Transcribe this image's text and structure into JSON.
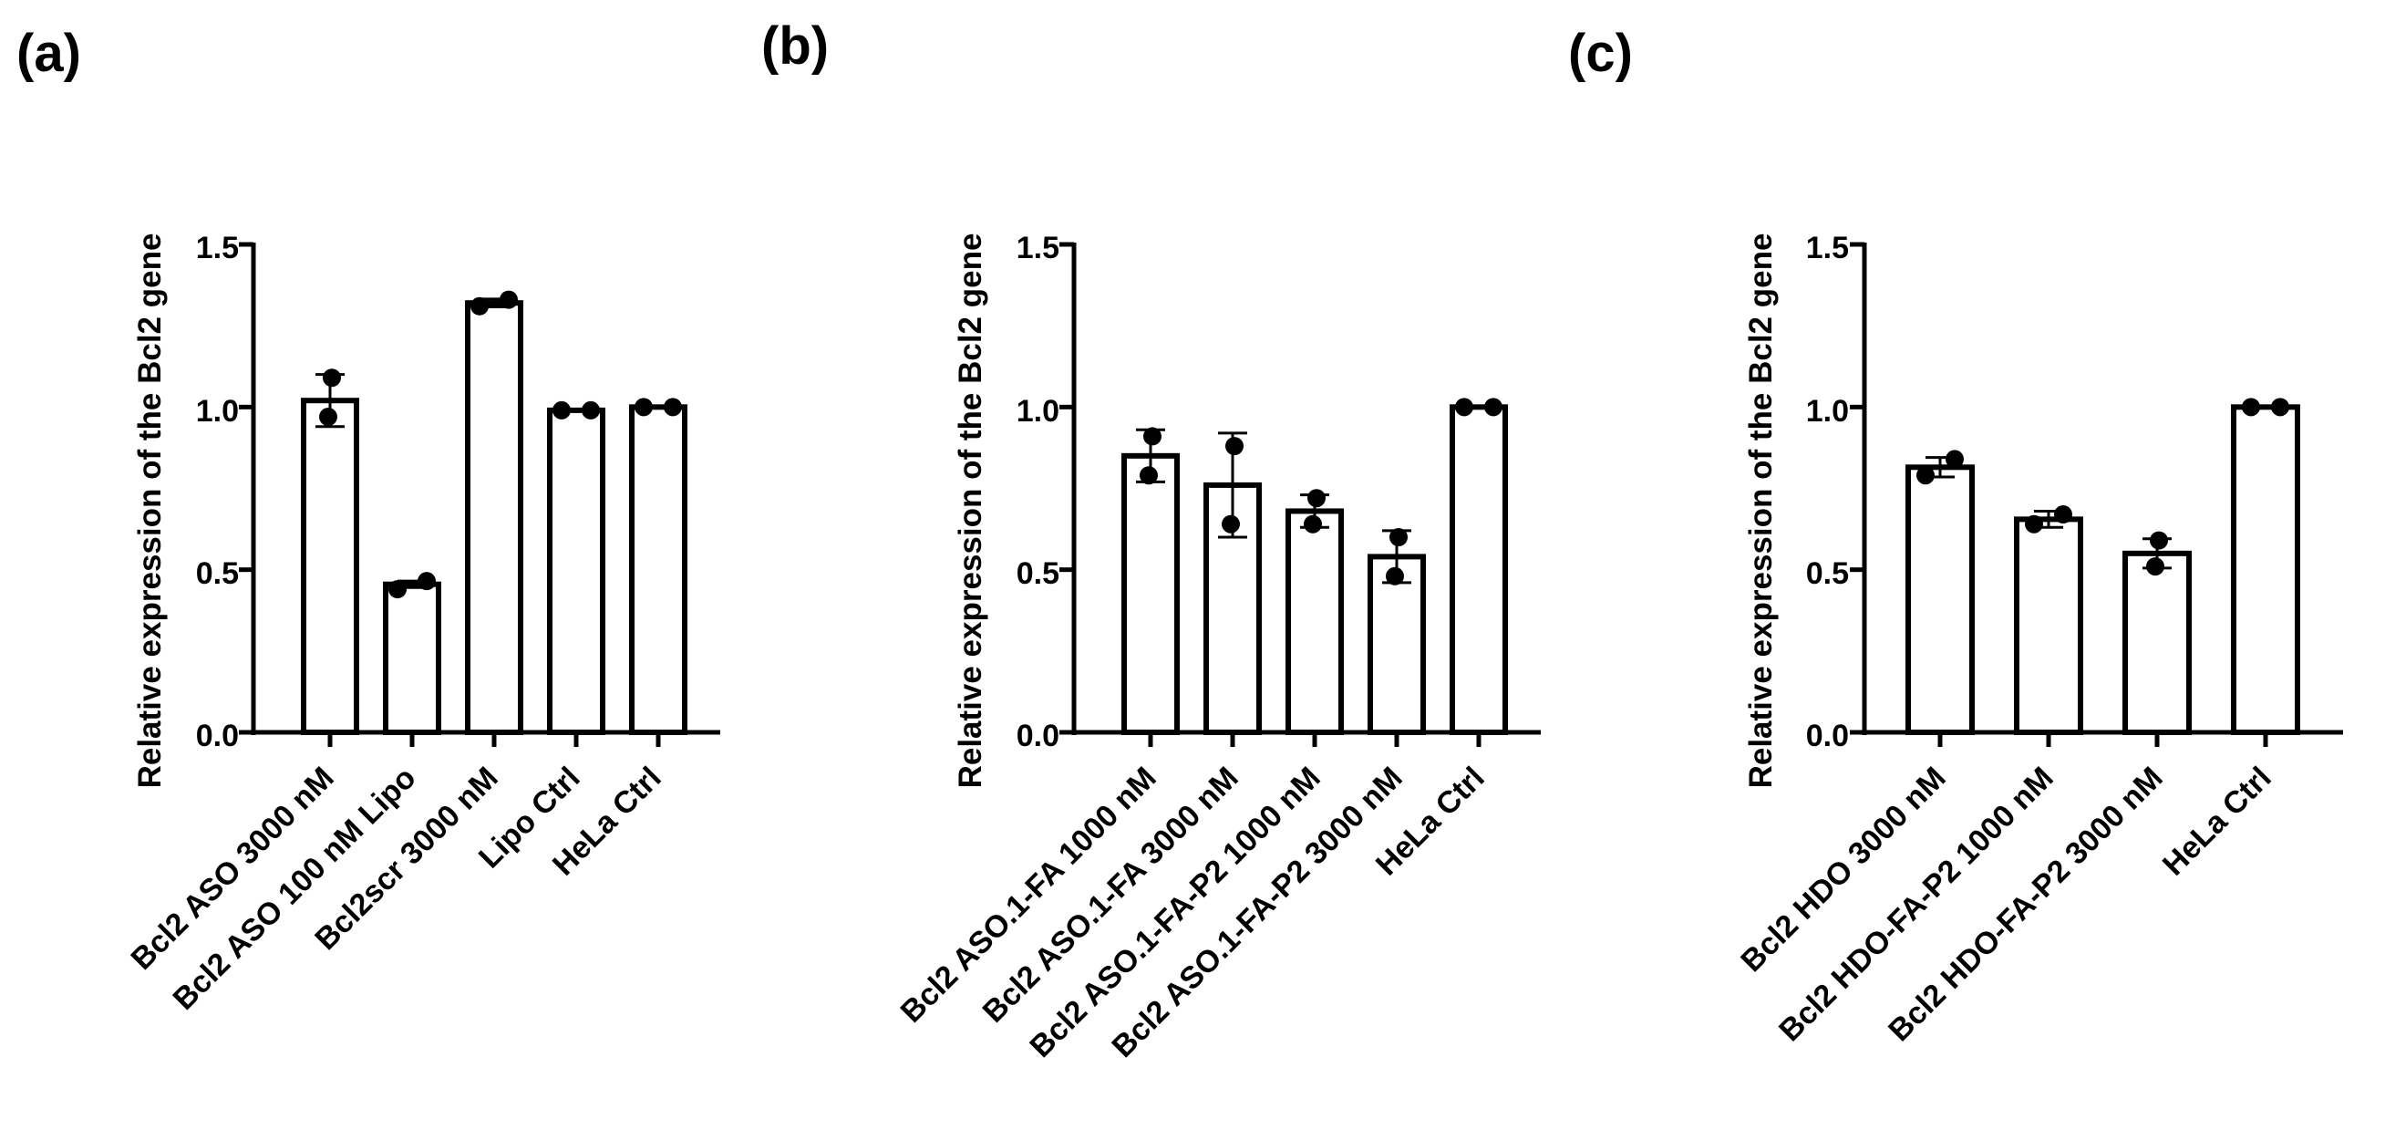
{
  "chart_data": [
    {
      "type": "bar",
      "panel_label": "(a)",
      "ylabel": "Relative expression of the Bcl2 gene",
      "xlabel": "",
      "ylim": [
        0,
        1.5
      ],
      "yticks": [
        0.0,
        0.5,
        1.0,
        1.5
      ],
      "ytick_labels": [
        "0.0",
        "0.5",
        "1.0",
        "1.5"
      ],
      "categories": [
        "Bcl2 ASO 3000 nM",
        "Bcl2 ASO 100 nM Lipo",
        "Bcl2scr 3000 nM",
        "Lipo Ctrl",
        "HeLa Ctrl"
      ],
      "values": [
        1.02,
        0.455,
        1.32,
        0.99,
        1.0
      ],
      "errors": [
        0.08,
        0.01,
        0.012,
        0.0,
        0.0
      ],
      "points": [
        [
          1.09,
          0.97
        ],
        [
          0.44,
          0.465
        ],
        [
          1.31,
          1.33
        ],
        [
          0.99,
          0.99
        ],
        [
          1.0,
          1.0
        ]
      ]
    },
    {
      "type": "bar",
      "panel_label": "(b)",
      "ylabel": "Relative expression of the Bcl2 gene",
      "xlabel": "",
      "ylim": [
        0,
        1.5
      ],
      "yticks": [
        0.0,
        0.5,
        1.0,
        1.5
      ],
      "ytick_labels": [
        "0.0",
        "0.5",
        "1.0",
        "1.5"
      ],
      "categories": [
        "Bcl2 ASO.1-FA 1000 nM",
        "Bcl2 ASO.1-FA 3000 nM",
        "Bcl2 ASO.1-FA-P2 1000 nM",
        "Bcl2 ASO.1-FA-P2 3000 nM",
        "HeLa Ctrl"
      ],
      "values": [
        0.85,
        0.76,
        0.68,
        0.54,
        1.0
      ],
      "errors": [
        0.08,
        0.16,
        0.05,
        0.08,
        0.0
      ],
      "points": [
        [
          0.91,
          0.79
        ],
        [
          0.88,
          0.64
        ],
        [
          0.72,
          0.64
        ],
        [
          0.6,
          0.48
        ],
        [
          1.0,
          1.0
        ]
      ]
    },
    {
      "type": "bar",
      "panel_label": "(c)",
      "ylabel": "Relative expression of the Bcl2 gene",
      "xlabel": "",
      "ylim": [
        0,
        1.5
      ],
      "yticks": [
        0.0,
        0.5,
        1.0,
        1.5
      ],
      "ytick_labels": [
        "0.0",
        "0.5",
        "1.0",
        "1.5"
      ],
      "categories": [
        "Bcl2 HDO 3000 nM",
        "Bcl2 HDO-FA-P2 1000 nM",
        "Bcl2 HDO-FA-P2 3000 nM",
        "HeLa Ctrl"
      ],
      "values": [
        0.815,
        0.655,
        0.55,
        1.0
      ],
      "errors": [
        0.03,
        0.025,
        0.045,
        0.0
      ],
      "points": [
        [
          0.79,
          0.84
        ],
        [
          0.64,
          0.67
        ],
        [
          0.59,
          0.51
        ],
        [
          1.0,
          1.0
        ]
      ]
    }
  ]
}
